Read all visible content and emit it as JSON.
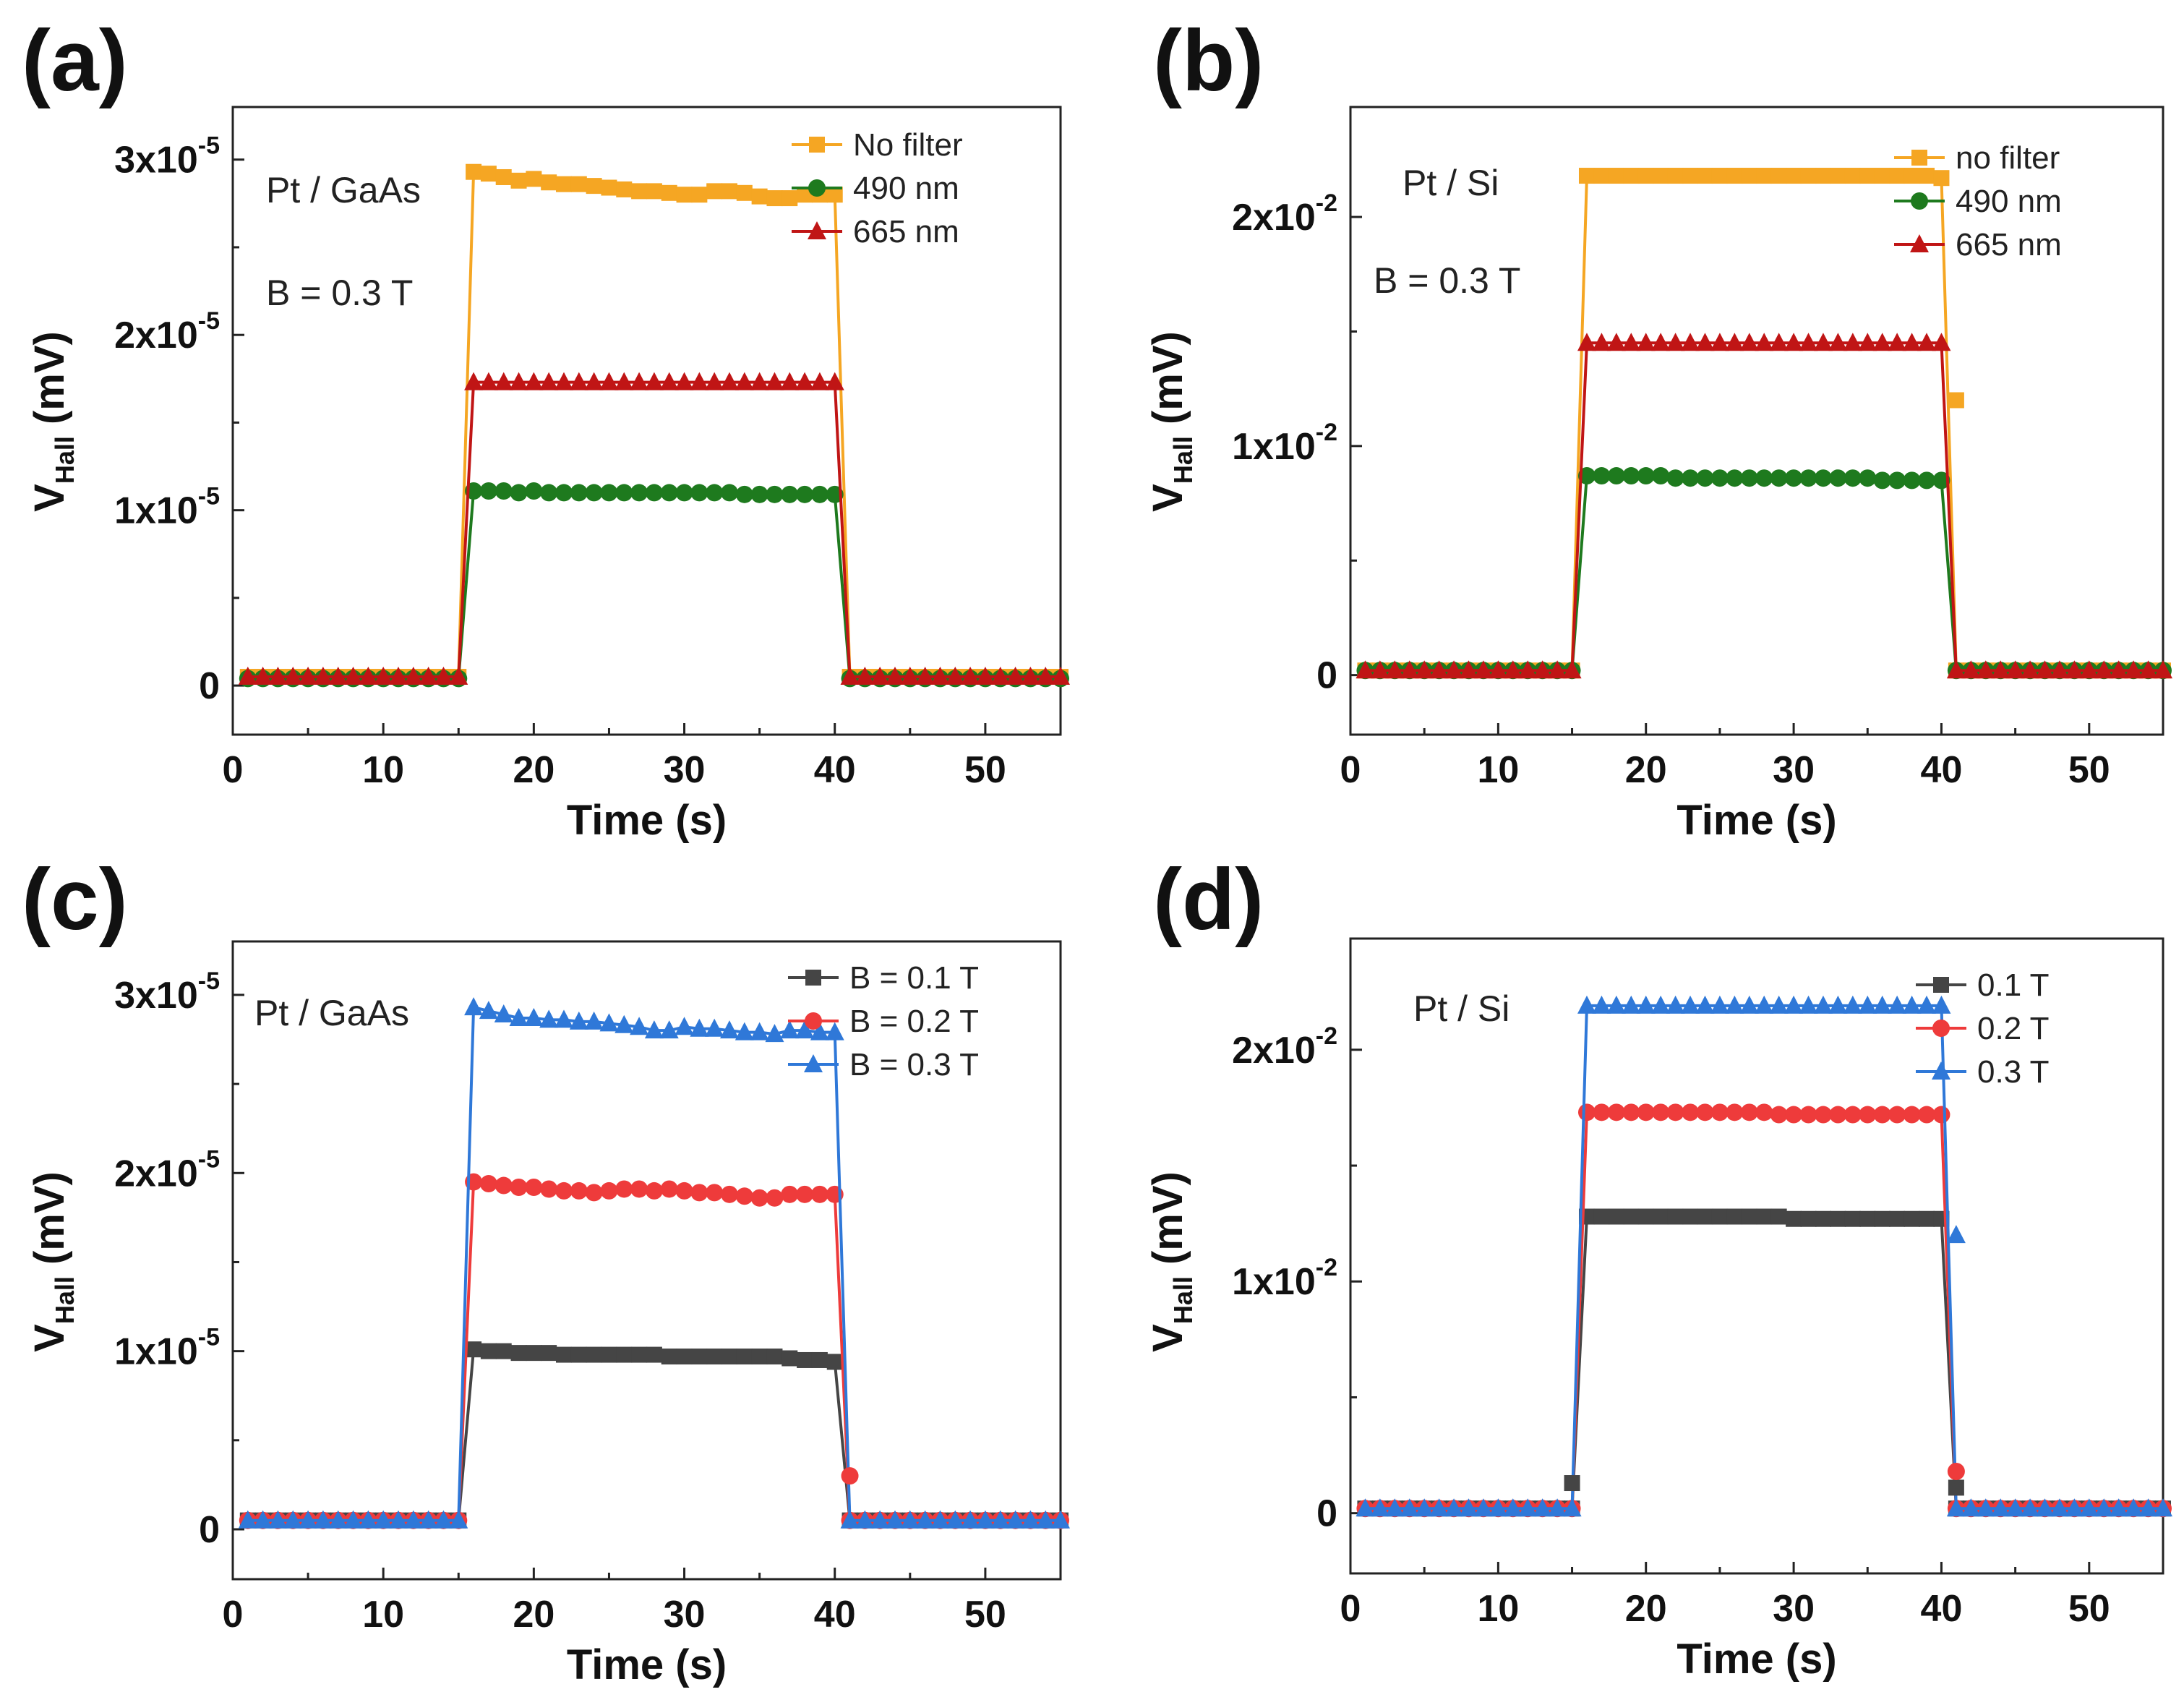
{
  "chart_data": [
    {
      "type": "line",
      "panel": "(a)",
      "annotations": [
        "Pt / GaAs",
        "B = 0.3 T"
      ],
      "xlabel": "Time (s)",
      "ylabel": {
        "main": "V",
        "sub": "Hall",
        "unit": " (mV)"
      },
      "xlim": [
        0,
        55
      ],
      "ylim": [
        -2.8e-06,
        3.3e-05
      ],
      "xticks": [
        0,
        10,
        20,
        30,
        40,
        50
      ],
      "xtick_labels": [
        "0",
        "10",
        "20",
        "30",
        "40",
        "50"
      ],
      "yticks": [
        {
          "value": 0,
          "base": "0",
          "exp": ""
        },
        {
          "value": 1e-05,
          "base": "1x10",
          "exp": "-5"
        },
        {
          "value": 2e-05,
          "base": "2x10",
          "exp": "-5"
        },
        {
          "value": 3e-05,
          "base": "3x10",
          "exp": "-5"
        }
      ],
      "time_steps": {
        "start": 1,
        "step": 1,
        "end": 55
      },
      "series": [
        {
          "name": "No filter",
          "color": "#f5a623",
          "marker": "square",
          "off_value": 5e-07,
          "on": [
            2.93e-05,
            2.92e-05,
            2.9e-05,
            2.88e-05,
            2.89e-05,
            2.87e-05,
            2.86e-05,
            2.86e-05,
            2.85e-05,
            2.84e-05,
            2.83e-05,
            2.82e-05,
            2.82e-05,
            2.81e-05,
            2.8e-05,
            2.8e-05,
            2.82e-05,
            2.82e-05,
            2.81e-05,
            2.79e-05,
            2.78e-05,
            2.78e-05,
            2.8e-05,
            2.8e-05,
            2.8e-05
          ]
        },
        {
          "name": "490 nm",
          "color": "#1e7a1e",
          "marker": "circle",
          "off_value": 4e-07,
          "on": [
            1.11e-05,
            1.11e-05,
            1.11e-05,
            1.1e-05,
            1.11e-05,
            1.1e-05,
            1.1e-05,
            1.1e-05,
            1.1e-05,
            1.1e-05,
            1.1e-05,
            1.1e-05,
            1.1e-05,
            1.1e-05,
            1.1e-05,
            1.1e-05,
            1.1e-05,
            1.1e-05,
            1.09e-05,
            1.09e-05,
            1.09e-05,
            1.09e-05,
            1.09e-05,
            1.09e-05,
            1.09e-05
          ]
        },
        {
          "name": "665 nm",
          "color": "#c01515",
          "marker": "triangle",
          "off_value": 5e-07,
          "on": [
            1.73e-05,
            1.73e-05,
            1.73e-05,
            1.73e-05,
            1.73e-05,
            1.73e-05,
            1.73e-05,
            1.73e-05,
            1.73e-05,
            1.73e-05,
            1.73e-05,
            1.73e-05,
            1.73e-05,
            1.73e-05,
            1.73e-05,
            1.73e-05,
            1.73e-05,
            1.73e-05,
            1.73e-05,
            1.73e-05,
            1.73e-05,
            1.73e-05,
            1.73e-05,
            1.73e-05,
            1.73e-05
          ]
        }
      ],
      "extra_points": []
    },
    {
      "type": "line",
      "panel": "(b)",
      "annotations": [
        "Pt / Si",
        "B = 0.3 T"
      ],
      "xlabel": "Time (s)",
      "ylabel": {
        "main": "V",
        "sub": "Hall",
        "unit": " (mV)"
      },
      "xlim": [
        0,
        55
      ],
      "ylim": [
        -0.0026,
        0.0248
      ],
      "xticks": [
        0,
        10,
        20,
        30,
        40,
        50
      ],
      "xtick_labels": [
        "0",
        "10",
        "20",
        "30",
        "40",
        "50"
      ],
      "yticks": [
        {
          "value": 0,
          "base": "0",
          "exp": ""
        },
        {
          "value": 0.01,
          "base": "1x10",
          "exp": "-2"
        },
        {
          "value": 0.02,
          "base": "2x10",
          "exp": "-2"
        }
      ],
      "time_steps": {
        "start": 1,
        "step": 1,
        "end": 55
      },
      "series": [
        {
          "name": "no filter",
          "color": "#f5a623",
          "marker": "square",
          "off_value": 0.0002,
          "on": [
            0.0218,
            0.0218,
            0.0218,
            0.0218,
            0.0218,
            0.0218,
            0.0218,
            0.0218,
            0.0218,
            0.0218,
            0.0218,
            0.0218,
            0.0218,
            0.0218,
            0.0218,
            0.0218,
            0.0218,
            0.0218,
            0.0218,
            0.0218,
            0.0218,
            0.0218,
            0.0218,
            0.0218,
            0.0217
          ]
        },
        {
          "name": "490 nm",
          "color": "#1e7a1e",
          "marker": "circle",
          "off_value": 0.0002,
          "on": [
            0.0087,
            0.0087,
            0.0087,
            0.0087,
            0.0087,
            0.0087,
            0.0086,
            0.0086,
            0.0086,
            0.0086,
            0.0086,
            0.0086,
            0.0086,
            0.0086,
            0.0086,
            0.0086,
            0.0086,
            0.0086,
            0.0086,
            0.0086,
            0.0085,
            0.0085,
            0.0085,
            0.0085,
            0.0085
          ]
        },
        {
          "name": "665 nm",
          "color": "#c01515",
          "marker": "triangle",
          "off_value": 0.0002,
          "on": [
            0.0145,
            0.0145,
            0.0145,
            0.0145,
            0.0145,
            0.0145,
            0.0145,
            0.0145,
            0.0145,
            0.0145,
            0.0145,
            0.0145,
            0.0145,
            0.0145,
            0.0145,
            0.0145,
            0.0145,
            0.0145,
            0.0145,
            0.0145,
            0.0145,
            0.0145,
            0.0145,
            0.0145,
            0.0145
          ]
        }
      ],
      "extra_points": [
        {
          "series": 0,
          "x": 41,
          "y": 0.012
        }
      ]
    },
    {
      "type": "line",
      "panel": "(c)",
      "annotations": [
        "Pt / GaAs"
      ],
      "xlabel": "Time (s)",
      "ylabel": {
        "main": "V",
        "sub": "Hall",
        "unit": " (mV)"
      },
      "xlim": [
        0,
        55
      ],
      "ylim": [
        -2.8e-06,
        3.3e-05
      ],
      "xticks": [
        0,
        10,
        20,
        30,
        40,
        50
      ],
      "xtick_labels": [
        "0",
        "10",
        "20",
        "30",
        "40",
        "50"
      ],
      "yticks": [
        {
          "value": 0,
          "base": "0",
          "exp": ""
        },
        {
          "value": 1e-05,
          "base": "1x10",
          "exp": "-5"
        },
        {
          "value": 2e-05,
          "base": "2x10",
          "exp": "-5"
        },
        {
          "value": 3e-05,
          "base": "3x10",
          "exp": "-5"
        }
      ],
      "time_steps": {
        "start": 1,
        "step": 1,
        "end": 55
      },
      "series": [
        {
          "name": "B = 0.1 T",
          "color": "#454545",
          "marker": "square",
          "off_value": 5e-07,
          "on": [
            1.01e-05,
            1e-05,
            1e-05,
            9.9e-06,
            9.9e-06,
            9.9e-06,
            9.8e-06,
            9.8e-06,
            9.8e-06,
            9.8e-06,
            9.8e-06,
            9.8e-06,
            9.8e-06,
            9.7e-06,
            9.7e-06,
            9.7e-06,
            9.7e-06,
            9.7e-06,
            9.7e-06,
            9.7e-06,
            9.7e-06,
            9.6e-06,
            9.5e-06,
            9.5e-06,
            9.4e-06
          ]
        },
        {
          "name": "B = 0.2 T",
          "color": "#ee3b3b",
          "marker": "circle",
          "off_value": 5e-07,
          "on": [
            1.95e-05,
            1.94e-05,
            1.93e-05,
            1.92e-05,
            1.92e-05,
            1.91e-05,
            1.9e-05,
            1.9e-05,
            1.89e-05,
            1.9e-05,
            1.91e-05,
            1.91e-05,
            1.9e-05,
            1.91e-05,
            1.9e-05,
            1.89e-05,
            1.89e-05,
            1.88e-05,
            1.87e-05,
            1.86e-05,
            1.86e-05,
            1.88e-05,
            1.88e-05,
            1.88e-05,
            1.88e-05
          ]
        },
        {
          "name": "B = 0.3 T",
          "color": "#2f78d8",
          "marker": "triangle",
          "off_value": 5e-07,
          "on": [
            2.93e-05,
            2.91e-05,
            2.89e-05,
            2.87e-05,
            2.87e-05,
            2.86e-05,
            2.86e-05,
            2.85e-05,
            2.85e-05,
            2.84e-05,
            2.83e-05,
            2.82e-05,
            2.8e-05,
            2.8e-05,
            2.82e-05,
            2.81e-05,
            2.81e-05,
            2.8e-05,
            2.79e-05,
            2.79e-05,
            2.78e-05,
            2.8e-05,
            2.8e-05,
            2.79e-05,
            2.79e-05
          ]
        }
      ],
      "extra_points": [
        {
          "series": 1,
          "x": 41,
          "y": 3e-06
        }
      ]
    },
    {
      "type": "line",
      "panel": "(d)",
      "annotations": [
        "Pt / Si"
      ],
      "xlabel": "Time (s)",
      "ylabel": {
        "main": "V",
        "sub": "Hall",
        "unit": " (mV)"
      },
      "xlim": [
        0,
        55
      ],
      "ylim": [
        -0.0026,
        0.0248
      ],
      "xticks": [
        0,
        10,
        20,
        30,
        40,
        50
      ],
      "xtick_labels": [
        "0",
        "10",
        "20",
        "30",
        "40",
        "50"
      ],
      "yticks": [
        {
          "value": 0,
          "base": "0",
          "exp": ""
        },
        {
          "value": 0.01,
          "base": "1x10",
          "exp": "-2"
        },
        {
          "value": 0.02,
          "base": "2x10",
          "exp": "-2"
        }
      ],
      "time_steps": {
        "start": 1,
        "step": 1,
        "end": 55
      },
      "series": [
        {
          "name": "0.1 T",
          "color": "#454545",
          "marker": "square",
          "off_value": 0.0002,
          "on": [
            0.0128,
            0.0128,
            0.0128,
            0.0128,
            0.0128,
            0.0128,
            0.0128,
            0.0128,
            0.0128,
            0.0128,
            0.0128,
            0.0128,
            0.0128,
            0.0128,
            0.0127,
            0.0127,
            0.0127,
            0.0127,
            0.0127,
            0.0127,
            0.0127,
            0.0127,
            0.0127,
            0.0127,
            0.0127
          ]
        },
        {
          "name": "0.2 T",
          "color": "#ee3b3b",
          "marker": "circle",
          "off_value": 0.0002,
          "on": [
            0.0173,
            0.0173,
            0.0173,
            0.0173,
            0.0173,
            0.0173,
            0.0173,
            0.0173,
            0.0173,
            0.0173,
            0.0173,
            0.0173,
            0.0173,
            0.0172,
            0.0172,
            0.0172,
            0.0172,
            0.0172,
            0.0172,
            0.0172,
            0.0172,
            0.0172,
            0.0172,
            0.0172,
            0.0172
          ]
        },
        {
          "name": "0.3 T",
          "color": "#2f78d8",
          "marker": "triangle",
          "off_value": 0.0002,
          "on": [
            0.0219,
            0.0219,
            0.0219,
            0.0219,
            0.0219,
            0.0219,
            0.0219,
            0.0219,
            0.0219,
            0.0219,
            0.0219,
            0.0219,
            0.0219,
            0.0219,
            0.0219,
            0.0219,
            0.0219,
            0.0219,
            0.0219,
            0.0219,
            0.0219,
            0.0219,
            0.0219,
            0.0219,
            0.0219
          ]
        }
      ],
      "extra_points": [
        {
          "series": 0,
          "x": 15,
          "y": 0.0013
        },
        {
          "series": 0,
          "x": 41,
          "y": 0.0011
        },
        {
          "series": 1,
          "x": 41,
          "y": 0.0018
        },
        {
          "series": 2,
          "x": 41,
          "y": 0.012
        }
      ]
    }
  ]
}
